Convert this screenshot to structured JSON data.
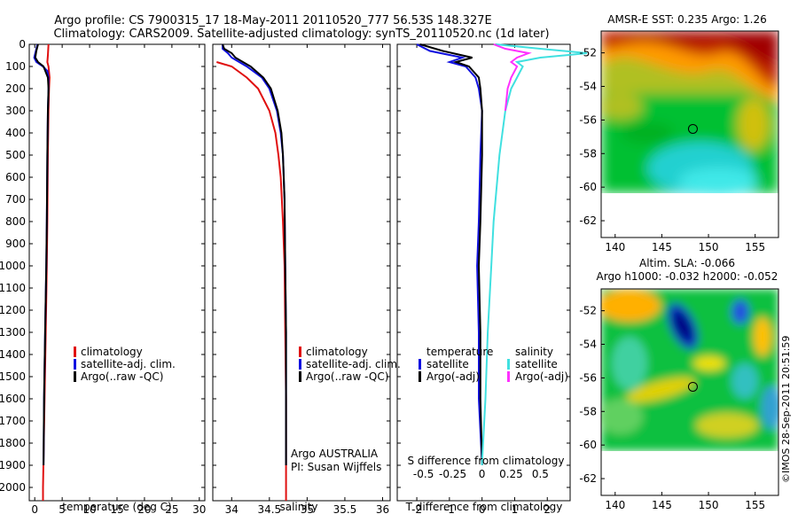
{
  "title": {
    "line1": "Argo profile: CS 7900315_17 18-May-2011 20110520_777 56.53S 148.327E",
    "line2": "Climatology: CARS2009. Satellite-adjusted climatology: synTS_20110520.nc (1d later)"
  },
  "watermark": "©IMOS 28-Sep-2011 20:51:59",
  "colors": {
    "climatology": "#e01010",
    "satellite": "#1010e0",
    "argo": "#000000",
    "sal_satellite": "#40e0e0",
    "sal_argo": "#ff30ff"
  },
  "chart_data": [
    {
      "type": "line",
      "xlabel": "temperature (deg C)",
      "xlim": [
        -1,
        31
      ],
      "xticks": [
        "0",
        "5",
        "10",
        "15",
        "20",
        "25",
        "30"
      ],
      "ylim": [
        2060,
        0
      ],
      "yticks": [
        "0",
        "100",
        "200",
        "300",
        "400",
        "500",
        "600",
        "700",
        "800",
        "900",
        "1000",
        "1100",
        "1200",
        "1300",
        "1400",
        "1500",
        "1600",
        "1700",
        "1800",
        "1900",
        "2000"
      ],
      "legend": [
        "climatology",
        "satellite-adj. clim.",
        "Argo(..raw -QC)"
      ],
      "series": [
        {
          "name": "climatology",
          "depth": [
            0,
            50,
            80,
            100,
            150,
            200,
            300,
            500,
            800,
            1000,
            1300,
            1600,
            2000,
            2060
          ],
          "values": [
            2.5,
            2.4,
            2.3,
            2.5,
            2.7,
            2.6,
            2.5,
            2.4,
            2.3,
            2.2,
            2.0,
            1.8,
            1.5,
            1.5
          ]
        },
        {
          "name": "satellite-adj. clim.",
          "depth": [
            0,
            30,
            60,
            80,
            100,
            120,
            150,
            200,
            300,
            500,
            800,
            1000,
            1300,
            1600,
            1900
          ],
          "values": [
            0.5,
            0.2,
            -0.1,
            0.3,
            1.5,
            2.3,
            2.5,
            2.5,
            2.4,
            2.3,
            2.2,
            2.1,
            1.9,
            1.7,
            1.6
          ]
        },
        {
          "name": "Argo(..raw -QC)",
          "depth": [
            0,
            30,
            60,
            80,
            100,
            150,
            200,
            300,
            500,
            800,
            1000,
            1300,
            1600,
            1900
          ],
          "values": [
            0.6,
            0.3,
            0.1,
            0.6,
            1.6,
            2.4,
            2.5,
            2.4,
            2.3,
            2.2,
            2.1,
            1.9,
            1.7,
            1.6
          ]
        }
      ]
    },
    {
      "type": "line",
      "xlabel": "salinity",
      "xlim": [
        33.75,
        36.1
      ],
      "xticks": [
        "34",
        "34.5",
        "35",
        "35.5",
        "36"
      ],
      "ylim": [
        2060,
        0
      ],
      "legend": [
        "climatology",
        "satellite-adj. clim.",
        "Argo(..raw -QC)"
      ],
      "annotation": [
        "Argo AUSTRALIA",
        "PI: Susan Wijffels"
      ],
      "series": [
        {
          "name": "climatology",
          "depth": [
            80,
            100,
            150,
            200,
            300,
            400,
            500,
            600,
            800,
            1000,
            1300,
            1600,
            1900,
            2060
          ],
          "values": [
            33.8,
            34.0,
            34.2,
            34.35,
            34.5,
            34.58,
            34.62,
            34.65,
            34.68,
            34.7,
            34.71,
            34.72,
            34.72,
            34.72
          ]
        },
        {
          "name": "satellite-adj. clim.",
          "depth": [
            0,
            20,
            40,
            60,
            80,
            100,
            150,
            200,
            300,
            400,
            500,
            700,
            1000,
            1300,
            1600,
            1900
          ],
          "values": [
            33.88,
            33.88,
            33.95,
            34.0,
            34.1,
            34.2,
            34.4,
            34.5,
            34.6,
            34.65,
            34.68,
            34.7,
            34.71,
            34.72,
            34.72,
            34.72
          ]
        },
        {
          "name": "Argo(..raw -QC)",
          "depth": [
            0,
            20,
            40,
            60,
            80,
            100,
            150,
            200,
            300,
            400,
            500,
            700,
            1000,
            1300,
            1600,
            1900
          ],
          "values": [
            33.88,
            33.9,
            34.0,
            34.05,
            34.15,
            34.25,
            34.42,
            34.52,
            34.61,
            34.66,
            34.68,
            34.7,
            34.71,
            34.72,
            34.72,
            34.72
          ]
        }
      ]
    },
    {
      "type": "line",
      "xlabel": "T difference from climatology",
      "xlim": [
        -2.6,
        2.7
      ],
      "xticks": [
        "-2",
        "-1",
        "0",
        "1",
        "2"
      ],
      "top_xlabel": "S difference from climatology",
      "top_xticks": [
        "-0.5",
        "-0.25",
        "0",
        "0.25",
        "0.5"
      ],
      "ylim": [
        2060,
        0
      ],
      "legend": {
        "temperature": [
          "temperature",
          "satellite",
          "Argo(-adj)"
        ],
        "salinity": [
          "salinity",
          "satellite",
          "Argo(-adj)"
        ]
      },
      "series": [
        {
          "name": "satellite",
          "depth": [
            0,
            30,
            60,
            80,
            100,
            150,
            200,
            300,
            500,
            800,
            1000,
            1300,
            1600,
            1900
          ],
          "values": [
            -2.0,
            -1.6,
            -0.6,
            -1.0,
            -0.5,
            -0.2,
            -0.1,
            0.0,
            -0.05,
            -0.1,
            -0.15,
            -0.1,
            -0.1,
            0.0
          ]
        },
        {
          "name": "Argo(-adj)",
          "depth": [
            0,
            30,
            60,
            80,
            100,
            150,
            200,
            300,
            500,
            800,
            1000,
            1300,
            1600,
            1900
          ],
          "values": [
            -1.9,
            -1.2,
            -0.3,
            -0.8,
            -0.4,
            -0.1,
            -0.05,
            0.0,
            0.0,
            -0.05,
            -0.1,
            -0.05,
            -0.05,
            0.0
          ]
        },
        {
          "name": "salinity satellite",
          "depth": [
            0,
            20,
            40,
            60,
            80,
            100,
            150,
            200,
            300,
            500,
            800,
            1000,
            1300,
            1600,
            1900
          ],
          "values": [
            0.12,
            0.5,
            0.9,
            0.5,
            0.3,
            0.35,
            0.3,
            0.25,
            0.2,
            0.15,
            0.1,
            0.08,
            0.05,
            0.03,
            0.0
          ]
        },
        {
          "name": "salinity Argo(-adj)",
          "depth": [
            0,
            20,
            40,
            60,
            80,
            100,
            150,
            200,
            300
          ],
          "values": [
            0.1,
            0.2,
            0.4,
            0.3,
            0.25,
            0.3,
            0.25,
            0.22,
            0.2
          ]
        }
      ]
    },
    {
      "type": "heatmap",
      "title": "AMSR-E SST: 0.235 Argo: 1.26",
      "xticks": [
        "140",
        "145",
        "150",
        "155"
      ],
      "yticks": [
        "-52",
        "-54",
        "-56",
        "-58",
        "-60",
        "-62"
      ],
      "xlim": [
        138.5,
        157.5
      ],
      "ylim": [
        -63,
        -50.7
      ],
      "marker": {
        "lon": 148.327,
        "lat": -56.53
      }
    },
    {
      "type": "heatmap",
      "title": "Altim. SLA: -0.066",
      "subtitle": "Argo h1000: -0.032 h2000: -0.052",
      "xticks": [
        "140",
        "145",
        "150",
        "155"
      ],
      "yticks": [
        "-52",
        "-54",
        "-56",
        "-58",
        "-60",
        "-62"
      ],
      "xlim": [
        138.5,
        157.5
      ],
      "ylim": [
        -63,
        -50.7
      ],
      "marker": {
        "lon": 148.327,
        "lat": -56.53
      }
    }
  ]
}
